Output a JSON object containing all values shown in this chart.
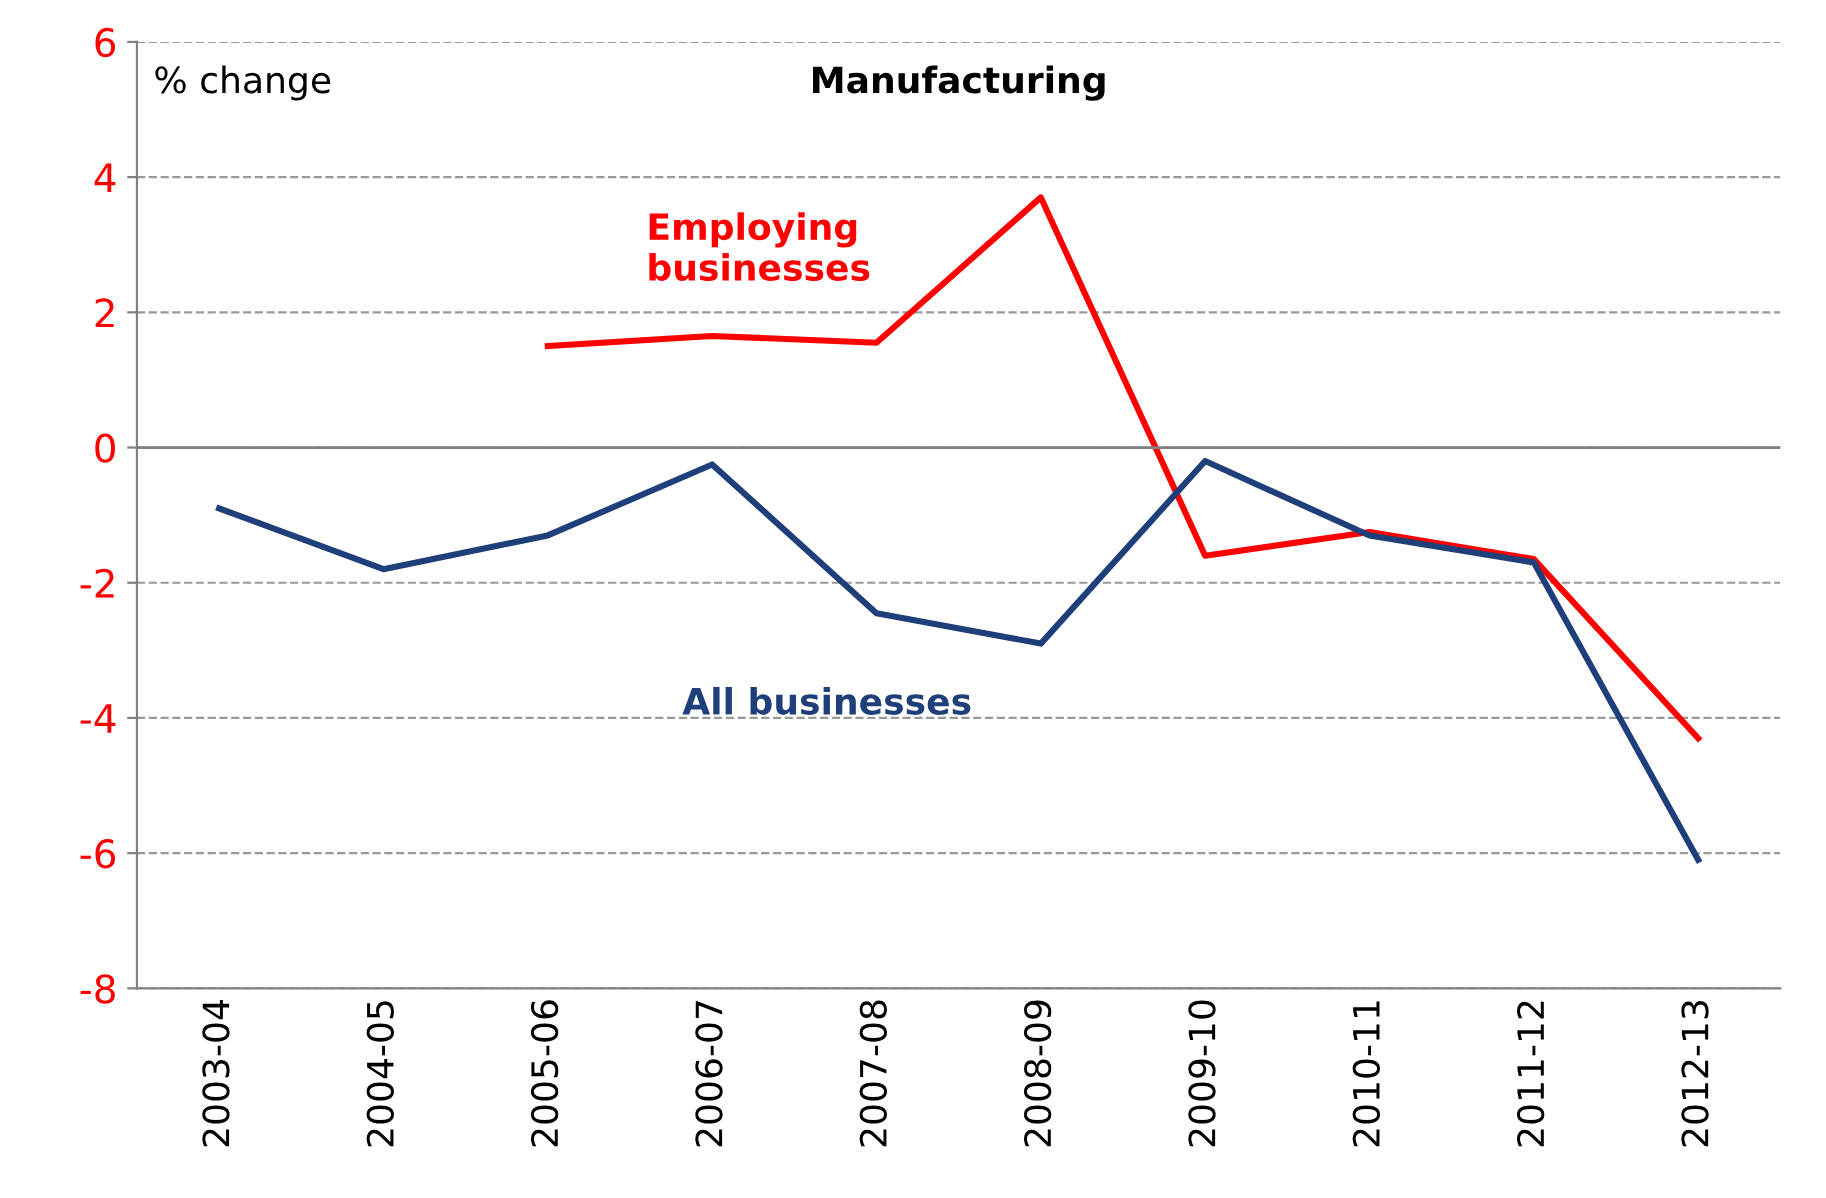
{
  "chart_data": {
    "type": "line",
    "title": "Manufacturing",
    "ylabel": "% change",
    "categories": [
      "2003-04",
      "2004-05",
      "2005-06",
      "2006-07",
      "2007-08",
      "2008-09",
      "2009-10",
      "2010-11",
      "2011-12",
      "2012-13"
    ],
    "series": [
      {
        "name": "Employing\nbusinesses",
        "color": "#ff0000",
        "values": [
          null,
          null,
          1.5,
          1.65,
          1.55,
          3.7,
          -1.6,
          -1.25,
          -1.65,
          -4.3
        ]
      },
      {
        "name": "All businesses",
        "color": "#1f3f7a",
        "values": [
          -0.9,
          -1.8,
          -1.3,
          -0.25,
          -2.45,
          -2.9,
          -0.2,
          -1.3,
          -1.7,
          -6.1
        ]
      }
    ],
    "ylim": [
      -8,
      6
    ],
    "yticks": [
      -8,
      -6,
      -4,
      -2,
      0,
      2,
      4,
      6
    ],
    "grid": "y",
    "legend": false,
    "marker": "none",
    "line_style": "solid",
    "ref_lines": [
      {
        "axis": "y",
        "value": 0,
        "color": "#808080",
        "line_style": "solid"
      }
    ]
  }
}
